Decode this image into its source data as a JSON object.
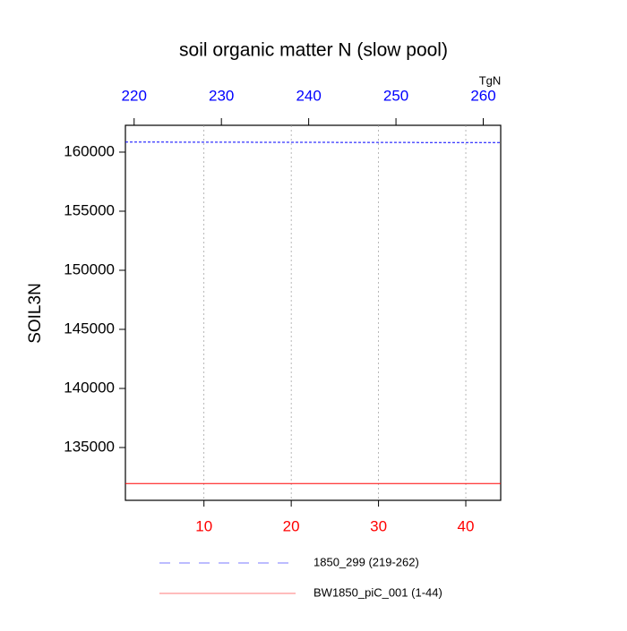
{
  "chart_data": {
    "type": "line",
    "title": "soil organic matter N (slow pool)",
    "ylabel": "SOIL3N",
    "x2label": "TgN",
    "xlim": [
      1,
      44
    ],
    "xticks": [
      10,
      20,
      30,
      40
    ],
    "xtick_color": "#ff0000",
    "x2lim": [
      219,
      262
    ],
    "x2ticks": [
      220,
      230,
      240,
      250,
      260
    ],
    "x2tick_color": "#0000ff",
    "ylim": [
      130530,
      162270
    ],
    "yticks": [
      135000,
      140000,
      145000,
      150000,
      155000,
      160000
    ],
    "grid": true,
    "series": [
      {
        "name": "1850_299 (219-262)",
        "color": "#0000ff",
        "dash": true,
        "xaxis": "x2",
        "x": [
          219,
          220,
          221,
          222,
          223,
          224,
          225,
          226,
          227,
          228,
          229,
          230,
          231,
          232,
          233,
          234,
          235,
          236,
          237,
          238,
          239,
          240,
          241,
          242,
          243,
          244,
          245,
          246,
          247,
          248,
          249,
          250,
          251,
          252,
          253,
          254,
          255,
          256,
          257,
          258,
          259,
          260,
          261,
          262
        ],
        "values": [
          160850,
          160849,
          160848,
          160847,
          160846,
          160845,
          160844,
          160843,
          160842,
          160841,
          160840,
          160839,
          160838,
          160837,
          160836,
          160835,
          160834,
          160833,
          160832,
          160831,
          160830,
          160829,
          160828,
          160827,
          160826,
          160825,
          160824,
          160823,
          160822,
          160821,
          160820,
          160819,
          160818,
          160817,
          160816,
          160815,
          160814,
          160813,
          160812,
          160811,
          160810,
          160809,
          160808,
          160807
        ]
      },
      {
        "name": "BW1850_piC_001 (1-44)",
        "color": "#ff0000",
        "dash": false,
        "xaxis": "x",
        "x": [
          1,
          2,
          3,
          4,
          5,
          6,
          7,
          8,
          9,
          10,
          11,
          12,
          13,
          14,
          15,
          16,
          17,
          18,
          19,
          20,
          21,
          22,
          23,
          24,
          25,
          26,
          27,
          28,
          29,
          30,
          31,
          32,
          33,
          34,
          35,
          36,
          37,
          38,
          39,
          40,
          41,
          42,
          43,
          44
        ],
        "values": [
          131950,
          131950,
          131950,
          131950,
          131950,
          131950,
          131950,
          131950,
          131950,
          131950,
          131950,
          131950,
          131950,
          131950,
          131950,
          131950,
          131950,
          131950,
          131950,
          131950,
          131950,
          131950,
          131950,
          131950,
          131950,
          131950,
          131950,
          131950,
          131950,
          131950,
          131950,
          131950,
          131950,
          131950,
          131950,
          131950,
          131950,
          131950,
          131950,
          131950,
          131950,
          131950,
          131950,
          131950
        ]
      }
    ]
  }
}
